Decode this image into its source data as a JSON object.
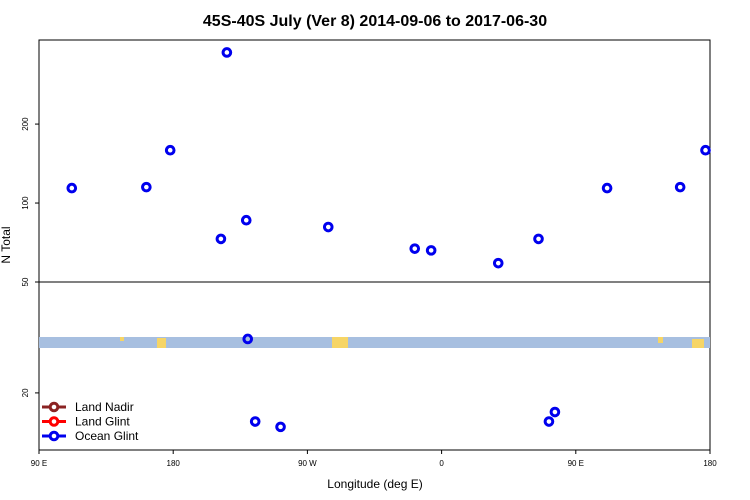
{
  "chart_data": {
    "type": "scatter",
    "title": "45S-40S July (Ver 8)   2014-09-06 to 2017-06-30",
    "xlabel": "Longitude (deg E)",
    "ylabel": "N Total",
    "x_axis": {
      "range_deg_east": [
        90,
        540
      ],
      "ticks": [
        {
          "value": 90,
          "label": "90 E"
        },
        {
          "value": 180,
          "label": "180"
        },
        {
          "value": 270,
          "label": "90 W"
        },
        {
          "value": 360,
          "label": "0"
        },
        {
          "value": 450,
          "label": "90 E"
        },
        {
          "value": 540,
          "label": "180"
        }
      ]
    },
    "upper_panel": {
      "scale": "log",
      "ylim": [
        50,
        390
      ],
      "yticks": [
        50,
        100,
        200
      ]
    },
    "lower_panel": {
      "scale": "log",
      "ylim": [
        9,
        37
      ],
      "yticks": [
        20
      ]
    },
    "legend": {
      "placement": "bottom-left",
      "entries": [
        {
          "name": "Land Nadir",
          "color": "#8b2323"
        },
        {
          "name": "Land Glint",
          "color": "#ff0000"
        },
        {
          "name": "Ocean Glint",
          "color": "#0000ee"
        }
      ]
    },
    "series": [
      {
        "name": "Ocean Glint",
        "color": "#0000ee",
        "points": [
          {
            "x": 112,
            "y": 114
          },
          {
            "x": 162,
            "y": 115
          },
          {
            "x": 178,
            "y": 159
          },
          {
            "x": 212,
            "y": 73
          },
          {
            "x": 216,
            "y": 375
          },
          {
            "x": 229,
            "y": 86
          },
          {
            "x": 230,
            "y": 45
          },
          {
            "x": 235,
            "y": 13
          },
          {
            "x": 252,
            "y": 12
          },
          {
            "x": 284,
            "y": 81
          },
          {
            "x": 342,
            "y": 67
          },
          {
            "x": 353,
            "y": 66
          },
          {
            "x": 398,
            "y": 59
          },
          {
            "x": 425,
            "y": 73
          },
          {
            "x": 432,
            "y": 13
          },
          {
            "x": 436,
            "y": 15
          },
          {
            "x": 471,
            "y": 114
          },
          {
            "x": 520,
            "y": 115
          },
          {
            "x": 537,
            "y": 159
          }
        ]
      }
    ],
    "land_strip": {
      "ocean_color": "#a7bfe0",
      "land_color": "#f6d566"
    }
  }
}
